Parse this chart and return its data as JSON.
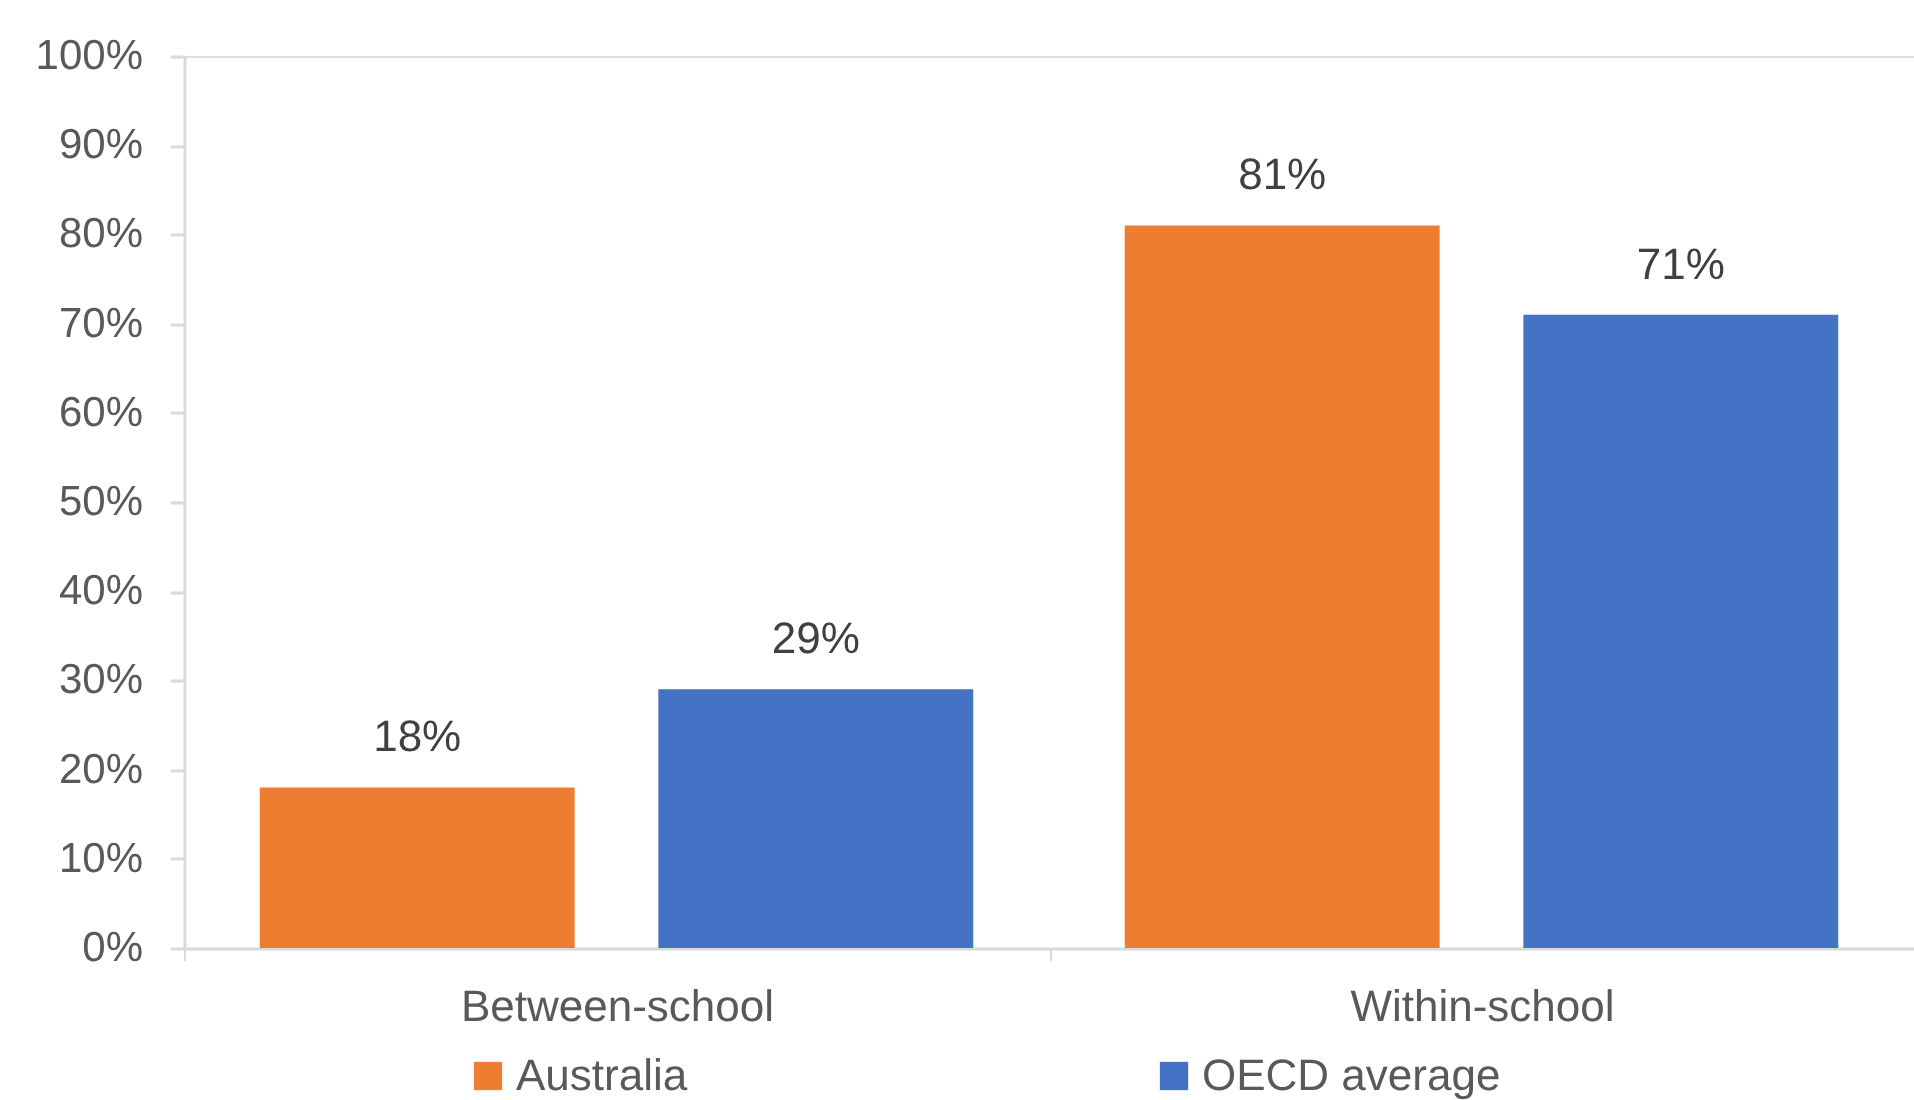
{
  "chart_data": {
    "type": "bar",
    "categories": [
      "Between-school",
      "Within-school"
    ],
    "series": [
      {
        "name": "Australia",
        "color": "#ed7d31",
        "values": [
          18,
          81
        ],
        "value_labels": [
          "18%",
          "81%"
        ]
      },
      {
        "name": "OECD average",
        "color": "#4472c4",
        "values": [
          29,
          71
        ],
        "value_labels": [
          "29%",
          "71%"
        ]
      }
    ],
    "ylim": [
      0,
      100
    ],
    "yticks": [
      {
        "value": 0,
        "label": "0%"
      },
      {
        "value": 10,
        "label": "10%"
      },
      {
        "value": 20,
        "label": "20%"
      },
      {
        "value": 30,
        "label": "30%"
      },
      {
        "value": 40,
        "label": "40%"
      },
      {
        "value": 50,
        "label": "50%"
      },
      {
        "value": 60,
        "label": "60%"
      },
      {
        "value": 70,
        "label": "70%"
      },
      {
        "value": 80,
        "label": "80%"
      },
      {
        "value": 90,
        "label": "90%"
      },
      {
        "value": 100,
        "label": "100%"
      }
    ],
    "legend": "bottom"
  }
}
